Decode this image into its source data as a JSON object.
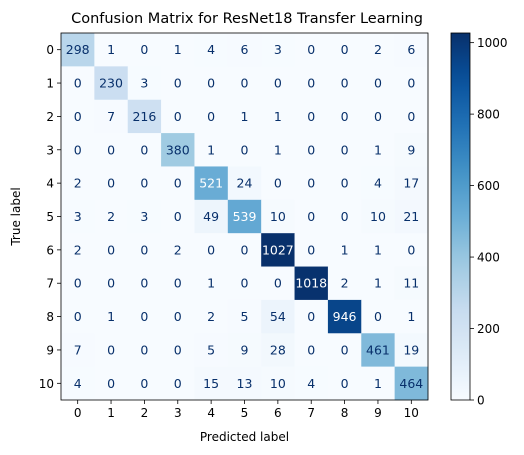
{
  "chart_data": {
    "type": "heatmap",
    "title": "Confusion Matrix for ResNet18 Transfer Learning",
    "xlabel": "Predicted label",
    "ylabel": "True label",
    "x_categories": [
      "0",
      "1",
      "2",
      "3",
      "4",
      "5",
      "6",
      "7",
      "8",
      "9",
      "10"
    ],
    "y_categories": [
      "0",
      "1",
      "2",
      "3",
      "4",
      "5",
      "6",
      "7",
      "8",
      "9",
      "10"
    ],
    "values": [
      [
        298,
        1,
        0,
        1,
        4,
        6,
        3,
        0,
        0,
        2,
        6
      ],
      [
        0,
        230,
        3,
        0,
        0,
        0,
        0,
        0,
        0,
        0,
        0
      ],
      [
        0,
        7,
        216,
        0,
        0,
        1,
        1,
        0,
        0,
        0,
        0
      ],
      [
        0,
        0,
        0,
        380,
        1,
        0,
        1,
        0,
        0,
        1,
        9
      ],
      [
        2,
        0,
        0,
        0,
        521,
        24,
        0,
        0,
        0,
        4,
        17
      ],
      [
        3,
        2,
        3,
        0,
        49,
        539,
        10,
        0,
        0,
        10,
        21
      ],
      [
        2,
        0,
        0,
        2,
        0,
        0,
        1027,
        0,
        1,
        1,
        0
      ],
      [
        0,
        0,
        0,
        0,
        1,
        0,
        0,
        1018,
        2,
        1,
        11
      ],
      [
        0,
        1,
        0,
        0,
        2,
        5,
        54,
        0,
        946,
        0,
        1
      ],
      [
        7,
        0,
        0,
        0,
        5,
        9,
        28,
        0,
        0,
        461,
        19
      ],
      [
        4,
        0,
        0,
        0,
        15,
        13,
        10,
        4,
        0,
        1,
        464
      ]
    ],
    "colormap": "Blues",
    "colorbar": {
      "range": [
        0,
        1027
      ],
      "ticks": [
        0,
        200,
        400,
        600,
        800,
        1000
      ]
    },
    "grid": false,
    "legend": "none"
  }
}
